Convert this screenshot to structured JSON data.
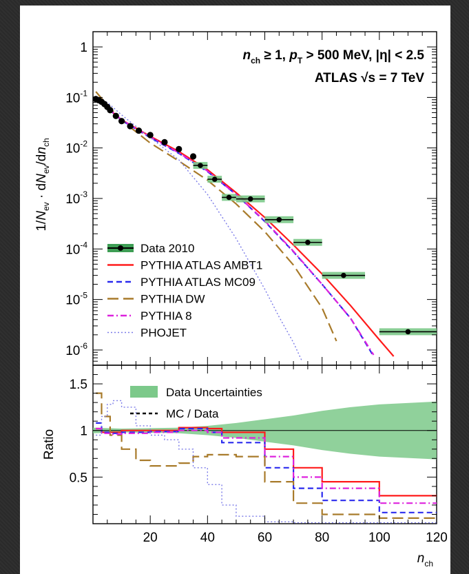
{
  "chart_data": [
    {
      "type": "line",
      "panel": "distribution",
      "annotation_line1": "n_ch ≥ 1, p_T > 500 MeV, |η| < 2.5",
      "annotation_line2": "ATLAS √s = 7 TeV",
      "ylabel": "1/N_ev · dN_ev/dn_ch",
      "xlabel": "n_ch",
      "xlim": [
        0,
        120
      ],
      "ylim": [
        5e-07,
        2
      ],
      "log_y": true,
      "x_ticks": [
        "20",
        "40",
        "60",
        "80",
        "100",
        "120"
      ],
      "y_ticks": [
        "1",
        "10-1",
        "10-2",
        "10-3",
        "10-4",
        "10-5",
        "10-6"
      ],
      "legend_position": "bottom-left",
      "data_points": {
        "name": "Data 2010",
        "x": [
          1,
          2,
          3,
          4,
          5,
          6,
          8,
          10,
          13,
          16,
          20,
          25,
          30,
          35,
          37.5,
          42.5,
          47.5,
          55,
          65,
          75,
          87.5,
          110
        ],
        "y": [
          0.093,
          0.088,
          0.082,
          0.074,
          0.065,
          0.056,
          0.043,
          0.034,
          0.027,
          0.022,
          0.018,
          0.013,
          0.0095,
          0.0068,
          0.0045,
          0.0024,
          0.00105,
          0.00098,
          0.00038,
          0.000135,
          3e-05,
          2.3e-06
        ],
        "xerr": [
          0,
          0,
          0,
          0,
          0,
          0,
          0,
          0,
          0,
          0,
          0,
          0,
          0,
          0,
          2.5,
          2.5,
          2.5,
          5,
          5,
          5,
          7.5,
          10
        ]
      },
      "series": [
        {
          "name": "PYTHIA ATLAS AMBT1",
          "color": "#ff1a1a",
          "dash": "solid",
          "x": [
            1,
            5,
            10,
            20,
            30,
            40,
            50,
            60,
            70,
            80,
            90,
            100,
            105
          ],
          "y": [
            0.095,
            0.062,
            0.036,
            0.017,
            0.0085,
            0.0037,
            0.0013,
            0.00042,
            0.00012,
            3.2e-05,
            7.5e-06,
            1.6e-06,
            7.5e-07
          ]
        },
        {
          "name": "PYTHIA ATLAS MC09",
          "color": "#2a2aee",
          "dash": "dashed",
          "x": [
            1,
            5,
            10,
            20,
            30,
            40,
            50,
            60,
            70,
            80,
            90,
            98
          ],
          "y": [
            0.1,
            0.062,
            0.035,
            0.016,
            0.0078,
            0.0034,
            0.0012,
            0.00035,
            8.8e-05,
            2e-05,
            4.2e-06,
            7.5e-07
          ]
        },
        {
          "name": "PYTHIA DW",
          "color": "#a87a2a",
          "dash": "long-dash",
          "x": [
            1,
            5,
            10,
            20,
            30,
            40,
            50,
            60,
            70,
            80,
            85
          ],
          "y": [
            0.13,
            0.07,
            0.035,
            0.0125,
            0.0055,
            0.0023,
            0.00078,
            0.00022,
            4.8e-05,
            6.8e-06,
            1.5e-06
          ]
        },
        {
          "name": "PYTHIA 8",
          "color": "#dd22dd",
          "dash": "dash-dot",
          "x": [
            1,
            5,
            10,
            20,
            30,
            40,
            50,
            60,
            70,
            80,
            90,
            98
          ],
          "y": [
            0.098,
            0.063,
            0.036,
            0.0165,
            0.008,
            0.0035,
            0.0012,
            0.00036,
            9e-05,
            2e-05,
            4.2e-06,
            8e-07
          ]
        },
        {
          "name": "PHOJET",
          "color": "#7a7ae8",
          "dash": "dotted",
          "x": [
            1,
            5,
            10,
            20,
            30,
            40,
            50,
            60,
            65,
            70,
            73
          ],
          "y": [
            0.09,
            0.08,
            0.045,
            0.016,
            0.0058,
            0.0012,
            0.00016,
            1.6e-05,
            4.5e-06,
            1.4e-06,
            6e-07
          ]
        }
      ]
    },
    {
      "type": "line",
      "panel": "ratio",
      "ylabel": "Ratio",
      "xlabel": "n_ch",
      "xlim": [
        0,
        120
      ],
      "ylim": [
        0,
        1.7
      ],
      "x_ticks": [
        "20",
        "40",
        "60",
        "80",
        "100",
        "120"
      ],
      "y_ticks": [
        "0.5",
        "1",
        "1.5"
      ],
      "legend": [
        "Data Uncertainties",
        "MC / Data"
      ],
      "uncertainty_band": {
        "color": "#7cc98a",
        "x": [
          0,
          10,
          30,
          40,
          50,
          60,
          70,
          80,
          90,
          100,
          120
        ],
        "lo": [
          0.97,
          0.98,
          0.97,
          0.95,
          0.92,
          0.88,
          0.84,
          0.79,
          0.75,
          0.72,
          0.69
        ],
        "hi": [
          1.03,
          1.02,
          1.03,
          1.05,
          1.08,
          1.12,
          1.16,
          1.21,
          1.25,
          1.28,
          1.31
        ]
      },
      "series": [
        {
          "name": "PYTHIA ATLAS AMBT1",
          "color": "#ff1a1a",
          "dash": "solid",
          "x": [
            1,
            3,
            6,
            10,
            20,
            30,
            40,
            45,
            50,
            60,
            70,
            80,
            100,
            120
          ],
          "y": [
            1.02,
            0.98,
            0.98,
            1.0,
            1.0,
            1.03,
            1.02,
            0.98,
            0.98,
            0.8,
            0.6,
            0.45,
            0.3,
            0.3
          ]
        },
        {
          "name": "PYTHIA ATLAS MC09",
          "color": "#2a2aee",
          "dash": "dashed",
          "x": [
            1,
            3,
            6,
            10,
            20,
            30,
            40,
            45,
            50,
            60,
            70,
            80,
            100,
            120
          ],
          "y": [
            1.08,
            0.98,
            0.97,
            0.98,
            0.99,
            1.02,
            0.98,
            0.87,
            0.87,
            0.6,
            0.38,
            0.25,
            0.12,
            0.12
          ]
        },
        {
          "name": "PYTHIA DW",
          "color": "#a87a2a",
          "dash": "long-dash",
          "x": [
            1,
            3,
            6,
            10,
            15,
            20,
            25,
            30,
            35,
            40,
            45,
            50,
            60,
            70,
            80,
            100,
            120
          ],
          "y": [
            1.4,
            1.15,
            0.95,
            0.8,
            0.68,
            0.62,
            0.62,
            0.65,
            0.72,
            0.74,
            0.74,
            0.72,
            0.45,
            0.22,
            0.1,
            0.06,
            0.06
          ]
        },
        {
          "name": "PYTHIA 8",
          "color": "#dd22dd",
          "dash": "dash-dot",
          "x": [
            1,
            3,
            6,
            10,
            20,
            30,
            40,
            45,
            50,
            60,
            70,
            80,
            100,
            120
          ],
          "y": [
            1.02,
            0.97,
            0.96,
            0.97,
            0.98,
            1.0,
            0.98,
            0.92,
            0.92,
            0.72,
            0.5,
            0.38,
            0.22,
            0.22
          ]
        },
        {
          "name": "PHOJET",
          "color": "#7a7ae8",
          "dash": "dotted",
          "x": [
            1,
            3,
            5,
            7,
            10,
            15,
            20,
            25,
            30,
            35,
            40,
            45,
            50,
            60,
            70,
            80,
            100,
            120
          ],
          "y": [
            0.95,
            1.15,
            1.28,
            1.32,
            1.25,
            1.05,
            0.95,
            0.9,
            0.8,
            0.6,
            0.42,
            0.2,
            0.08,
            0.02,
            0.01,
            0.01,
            0.01,
            0.01
          ]
        }
      ]
    }
  ]
}
